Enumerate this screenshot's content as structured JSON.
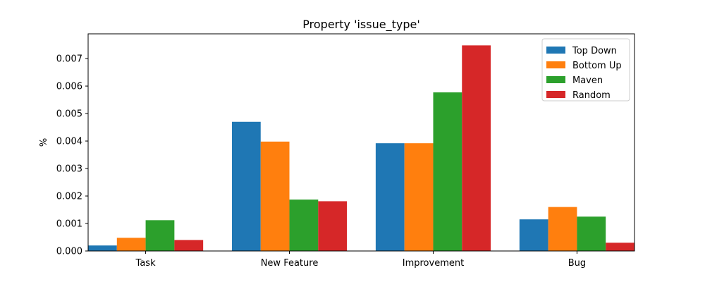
{
  "chart_data": {
    "type": "bar",
    "title": "Property 'issue_type'",
    "xlabel": "",
    "ylabel": "%",
    "categories": [
      "Task",
      "New Feature",
      "Improvement",
      "Bug"
    ],
    "ylim": [
      0,
      0.0079
    ],
    "yticks": [
      "0.000",
      "0.001",
      "0.002",
      "0.003",
      "0.004",
      "0.005",
      "0.006",
      "0.007"
    ],
    "grid": false,
    "legend_position": "top-right",
    "series": [
      {
        "name": "Top Down",
        "color": "#1f77b4",
        "values": [
          0.0002,
          0.0047,
          0.00392,
          0.00115
        ]
      },
      {
        "name": "Bottom Up",
        "color": "#ff7f0e",
        "values": [
          0.00048,
          0.00398,
          0.00392,
          0.0016
        ]
      },
      {
        "name": "Maven",
        "color": "#2ca02c",
        "values": [
          0.00112,
          0.00187,
          0.00577,
          0.00125
        ]
      },
      {
        "name": "Random",
        "color": "#d62728",
        "values": [
          0.0004,
          0.00181,
          0.00748,
          0.0003
        ]
      }
    ]
  }
}
